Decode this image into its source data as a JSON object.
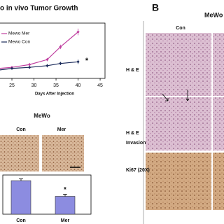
{
  "chart_data": [
    {
      "type": "line",
      "title": "o in vivo Tumor Growth",
      "x_label": "Days After Injection",
      "x": [
        22,
        25,
        29,
        33,
        36,
        40
      ],
      "xlim": [
        22.3,
        46.1
      ],
      "xticks": [
        25,
        30,
        35,
        40,
        45
      ],
      "ylim": [
        0,
        100
      ],
      "series": [
        {
          "name": "Mewo Mer",
          "color": "#c040a0",
          "values": [
            18,
            20,
            25,
            34,
            57,
            84
          ],
          "errors": [
            2,
            2,
            3,
            3,
            4,
            6
          ]
        },
        {
          "name": "Mewo Con",
          "color": "#1a2a5a",
          "values": [
            15,
            18,
            20,
            23,
            27,
            30
          ],
          "errors": [
            2,
            2,
            2,
            3,
            3,
            4
          ]
        }
      ],
      "annotation": "*"
    },
    {
      "type": "bar",
      "categories": [
        "Con",
        "Mer"
      ],
      "values": [
        0.94,
        0.5
      ],
      "errors": [
        0.05,
        0.06
      ],
      "ylim": [
        0,
        1
      ],
      "color": "#8c8ce0",
      "annotation": "*"
    }
  ],
  "panel_a_ihc": {
    "title": "MeWo",
    "columns": [
      "Con",
      "Mer"
    ]
  },
  "panel_b": {
    "letter": "B",
    "title": "MeWo",
    "column": "Con",
    "rows": [
      [
        "H & E"
      ],
      [
        "H & E",
        "Invasion"
      ],
      [
        "Ki67 (20X)"
      ]
    ]
  }
}
